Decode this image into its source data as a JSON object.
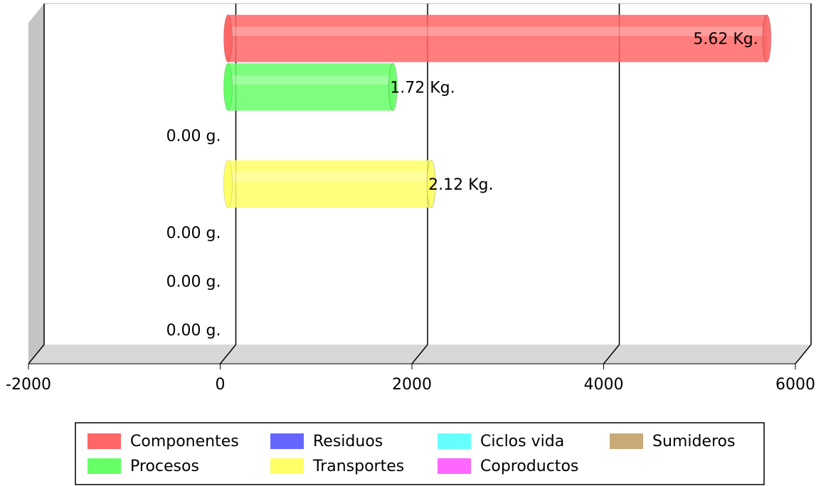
{
  "chart_data": {
    "type": "bar",
    "orientation": "horizontal",
    "series": [
      {
        "name": "Componentes",
        "color": "#ff6666",
        "values": [
          5620
        ],
        "value_labels": [
          "5.62 Kg."
        ]
      },
      {
        "name": "Procesos",
        "color": "#66ff66",
        "values": [
          1720
        ],
        "value_labels": [
          "1.72 Kg."
        ]
      },
      {
        "name": "Residuos",
        "color": "#6666ff",
        "values": [
          0
        ],
        "value_labels": [
          "0.00 g."
        ]
      },
      {
        "name": "Transportes",
        "color": "#ffff66",
        "values": [
          2120
        ],
        "value_labels": [
          "2.12 Kg."
        ]
      },
      {
        "name": "Ciclos vida",
        "color": "#66ffff",
        "values": [
          0
        ],
        "value_labels": [
          "0.00 g."
        ]
      },
      {
        "name": "Coproductos",
        "color": "#ff66ff",
        "values": [
          0
        ],
        "value_labels": [
          "0.00 g."
        ]
      },
      {
        "name": "Sumideros",
        "color": "#c8aa78",
        "values": [
          0
        ],
        "value_labels": [
          "0.00 g."
        ]
      }
    ],
    "xlim": [
      -2000,
      6000
    ],
    "xticks": [
      -2000,
      0,
      2000,
      4000,
      6000
    ],
    "grid": true,
    "legend": "bottom"
  }
}
